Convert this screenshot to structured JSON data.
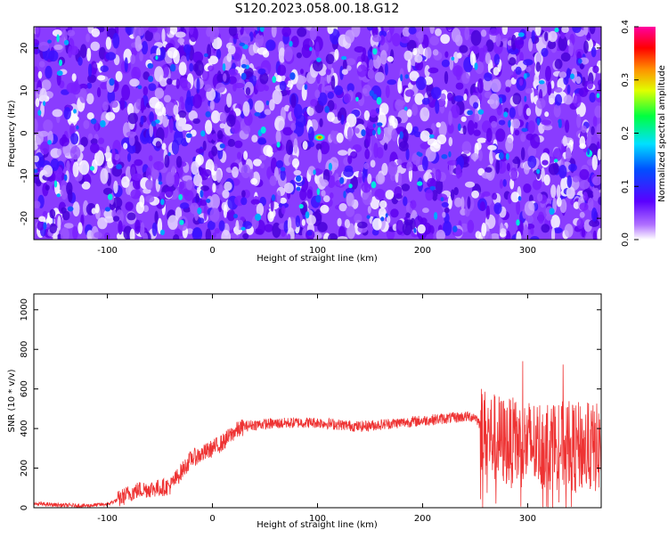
{
  "title": "S120.2023.058.00.18.G12",
  "chart_data": [
    {
      "type": "heatmap",
      "xlabel": "Height of straight line (km)",
      "ylabel": "Frequency (Hz)",
      "xlim": [
        -170,
        370
      ],
      "ylim": [
        -25,
        25
      ],
      "xticks": [
        -100,
        0,
        100,
        200,
        300
      ],
      "yticks": [
        -20,
        -10,
        0,
        10,
        20
      ],
      "colorbar": {
        "label": "Normalized spectral amplitude",
        "range": [
          0.0,
          0.4
        ],
        "ticks": [
          "0.0",
          "0.1",
          "0.2",
          "0.3",
          "0.4"
        ]
      },
      "peak": {
        "x": 102,
        "y": -1,
        "value": 0.3
      }
    },
    {
      "type": "line",
      "xlabel": "Height of straight line (km)",
      "ylabel": "SNR (10 * v/v)",
      "xlim": [
        -170,
        370
      ],
      "ylim": [
        0,
        1080
      ],
      "xticks": [
        -100,
        0,
        100,
        200,
        300
      ],
      "yticks": [
        0,
        200,
        400,
        600,
        800,
        1000
      ],
      "color": "#ee3333",
      "series": [
        {
          "x": [
            -170,
            -140,
            -120,
            -100,
            -90,
            -80,
            -70,
            -60,
            -50,
            -40,
            -30,
            -20,
            -10,
            0,
            10,
            20,
            30,
            40,
            60,
            80,
            100,
            120,
            140,
            160,
            180,
            200,
            220,
            240,
            250,
            255,
            260,
            280,
            300,
            320,
            340,
            360,
            370
          ],
          "y": [
            20,
            12,
            10,
            18,
            40,
            70,
            90,
            95,
            100,
            110,
            180,
            250,
            270,
            300,
            330,
            380,
            410,
            420,
            425,
            430,
            430,
            420,
            410,
            420,
            430,
            440,
            450,
            460,
            460,
            420,
            370,
            330,
            320,
            320,
            310,
            300,
            300
          ]
        }
      ]
    }
  ]
}
